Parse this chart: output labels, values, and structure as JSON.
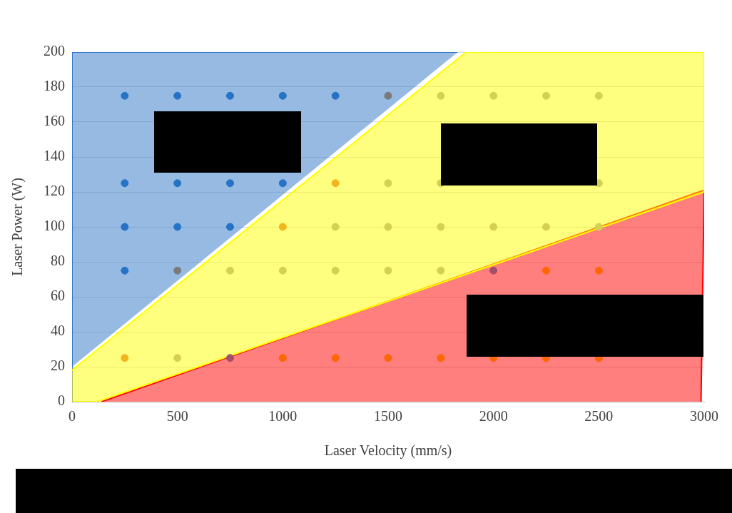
{
  "chart_data": {
    "type": "scatter",
    "xlabel": "Laser Velocity (mm/s)",
    "ylabel": "Laser Power (W)",
    "xlim": [
      0,
      3000
    ],
    "xticks": [
      0,
      500,
      1000,
      1500,
      2000,
      2500,
      3000
    ],
    "ylim": [
      0,
      200
    ],
    "yticks": [
      0,
      20,
      40,
      60,
      80,
      100,
      120,
      140,
      160,
      180,
      200
    ],
    "grid": "y",
    "legend": false,
    "series": [
      {
        "type": "area",
        "color": "#2e75c6",
        "x": [
          0,
          0,
          1830
        ],
        "values": [
          20,
          200,
          200
        ]
      },
      {
        "type": "area",
        "color": "#ffff00",
        "x": [
          0,
          1870,
          3000,
          3000,
          120,
          0
        ],
        "values": [
          18,
          200,
          200,
          120,
          0,
          0
        ]
      },
      {
        "type": "area",
        "color": "#ff0000",
        "x": [
          140,
          3000,
          2985
        ],
        "values": [
          0,
          121,
          0
        ]
      },
      {
        "type": "scatter",
        "marker": "circle",
        "color": "#2673c6",
        "x": [
          250,
          500,
          750,
          1000,
          1250,
          250,
          500,
          750,
          1000,
          250,
          500,
          750,
          250
        ],
        "values": [
          175,
          175,
          175,
          175,
          175,
          125,
          125,
          125,
          125,
          100,
          100,
          100,
          75
        ]
      },
      {
        "type": "scatter",
        "marker": "circle",
        "color": "#7a7a7a",
        "x": [
          1500,
          500
        ],
        "values": [
          175,
          75
        ]
      },
      {
        "type": "scatter",
        "marker": "circle",
        "color": "#d4d054",
        "x": [
          1750,
          2000,
          2250,
          2500,
          1500,
          1750,
          2500,
          1250,
          1500,
          1750,
          2000,
          2250,
          2500,
          750,
          1000,
          1250,
          1500,
          1750,
          500
        ],
        "values": [
          175,
          175,
          175,
          175,
          125,
          125,
          125,
          100,
          100,
          100,
          100,
          100,
          100,
          75,
          75,
          75,
          75,
          75,
          25
        ]
      },
      {
        "type": "scatter",
        "marker": "circle",
        "color": "#f2b51f",
        "x": [
          1250,
          1000,
          250
        ],
        "values": [
          125,
          100,
          25
        ]
      },
      {
        "type": "scatter",
        "marker": "circle",
        "color": "#a4506c",
        "x": [
          2000,
          750
        ],
        "values": [
          75,
          25
        ]
      },
      {
        "type": "scatter",
        "marker": "circle",
        "color": "#ff6600",
        "x": [
          2250,
          2500,
          1000,
          1250,
          1500,
          1750,
          2000,
          2250,
          2500
        ],
        "values": [
          75,
          75,
          25,
          25,
          25,
          25,
          25,
          25,
          25
        ]
      }
    ]
  }
}
